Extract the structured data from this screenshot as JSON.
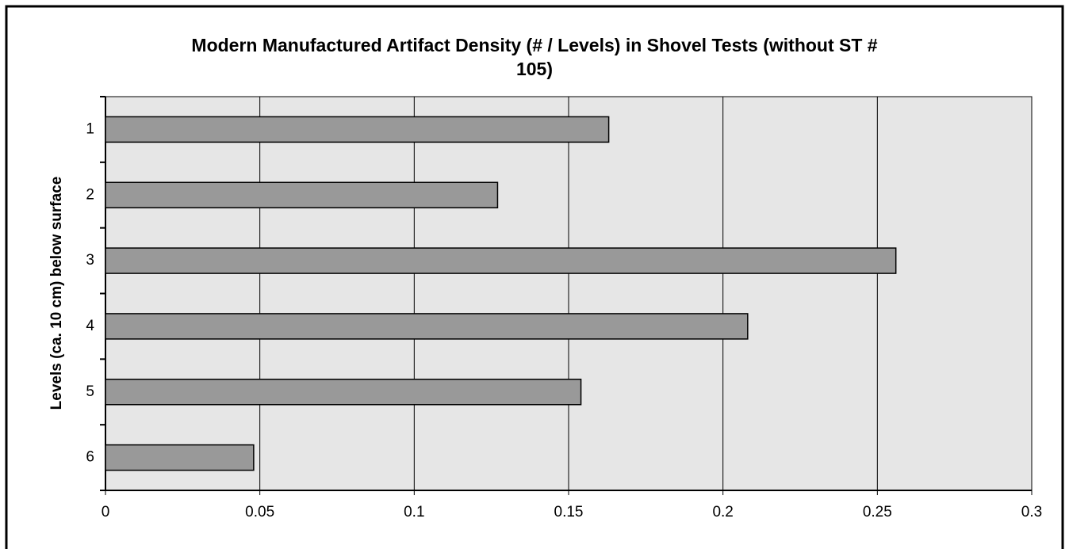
{
  "chart_data": {
    "type": "bar",
    "orientation": "horizontal",
    "title": "Modern Manufactured Artifact Density (# / Levels) in Shovel Tests (without ST # 105)",
    "y_label": "Levels (ca. 10 cm) below surface",
    "categories": [
      "1",
      "2",
      "3",
      "4",
      "5",
      "6"
    ],
    "values": [
      0.163,
      0.127,
      0.256,
      0.208,
      0.154,
      0.048
    ],
    "color": "#999999",
    "xlim": [
      0,
      0.3
    ],
    "xticks": [
      0,
      0.05,
      0.1,
      0.15,
      0.2,
      0.25,
      0.3
    ],
    "grid": true
  }
}
